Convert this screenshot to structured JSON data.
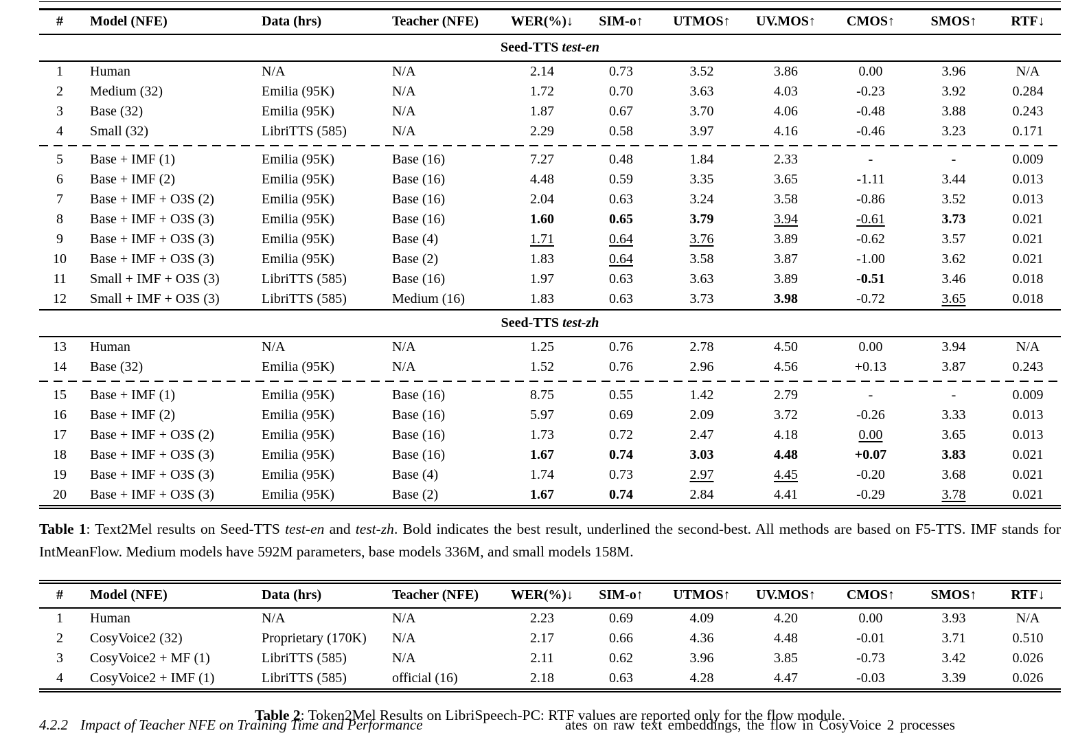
{
  "table1": {
    "headers": [
      "#",
      "Model (NFE)",
      "Data (hrs)",
      "Teacher (NFE)",
      "WER(%)↓",
      "SIM-o↑",
      "UTMOS↑",
      "UV.MOS↑",
      "CMOS↑",
      "SMOS↑",
      "RTF↓"
    ],
    "sections": [
      {
        "label_bold": "Seed-TTS",
        "label_italic": "test-en",
        "groups": [
          [
            [
              "1",
              "Human",
              "N/A",
              "N/A",
              "2.14",
              "0.73",
              "3.52",
              "3.86",
              "0.00",
              "3.96",
              "N/A"
            ],
            [
              "2",
              "Medium (32)",
              "Emilia (95K)",
              "N/A",
              "1.72",
              "0.70",
              "3.63",
              "4.03",
              "-0.23",
              "3.92",
              "0.284"
            ],
            [
              "3",
              "Base (32)",
              "Emilia (95K)",
              "N/A",
              "1.87",
              "0.67",
              "3.70",
              "4.06",
              "-0.48",
              "3.88",
              "0.243"
            ],
            [
              "4",
              "Small (32)",
              "LibriTTS (585)",
              "N/A",
              "2.29",
              "0.58",
              "3.97",
              "4.16",
              "-0.46",
              "3.23",
              "0.171"
            ]
          ],
          [
            [
              "5",
              "Base + IMF (1)",
              "Emilia (95K)",
              "Base (16)",
              "7.27",
              "0.48",
              "1.84",
              "2.33",
              "-",
              "-",
              "0.009"
            ],
            [
              "6",
              "Base + IMF (2)",
              "Emilia (95K)",
              "Base (16)",
              "4.48",
              "0.59",
              "3.35",
              "3.65",
              "-1.11",
              "3.44",
              "0.013"
            ],
            [
              "7",
              "Base + IMF + O3S (2)",
              "Emilia (95K)",
              "Base (16)",
              "2.04",
              "0.63",
              "3.24",
              "3.58",
              "-0.86",
              "3.52",
              "0.013"
            ],
            [
              "8",
              "Base + IMF + O3S (3)",
              "Emilia (95K)",
              "Base (16)",
              {
                "t": "1.60",
                "s": "b"
              },
              {
                "t": "0.65",
                "s": "b"
              },
              {
                "t": "3.79",
                "s": "b"
              },
              {
                "t": "3.94",
                "s": "u"
              },
              {
                "t": "-0.61",
                "s": "u"
              },
              {
                "t": "3.73",
                "s": "b"
              },
              "0.021"
            ],
            [
              "9",
              "Base + IMF + O3S (3)",
              "Emilia (95K)",
              "Base (4)",
              {
                "t": "1.71",
                "s": "u"
              },
              {
                "t": "0.64",
                "s": "u"
              },
              {
                "t": "3.76",
                "s": "u"
              },
              "3.89",
              "-0.62",
              "3.57",
              "0.021"
            ],
            [
              "10",
              "Base + IMF + O3S (3)",
              "Emilia (95K)",
              "Base (2)",
              "1.83",
              {
                "t": "0.64",
                "s": "u"
              },
              "3.58",
              "3.87",
              "-1.00",
              "3.62",
              "0.021"
            ],
            [
              "11",
              "Small + IMF + O3S (3)",
              "LibriTTS (585)",
              "Base (16)",
              "1.97",
              "0.63",
              "3.63",
              "3.89",
              {
                "t": "-0.51",
                "s": "b"
              },
              "3.46",
              "0.018"
            ],
            [
              "12",
              "Small + IMF + O3S (3)",
              "LibriTTS (585)",
              "Medium (16)",
              "1.83",
              "0.63",
              "3.73",
              {
                "t": "3.98",
                "s": "b"
              },
              "-0.72",
              {
                "t": "3.65",
                "s": "u"
              },
              "0.018"
            ]
          ]
        ]
      },
      {
        "label_bold": "Seed-TTS",
        "label_italic": "test-zh",
        "groups": [
          [
            [
              "13",
              "Human",
              "N/A",
              "N/A",
              "1.25",
              "0.76",
              "2.78",
              "4.50",
              "0.00",
              "3.94",
              "N/A"
            ],
            [
              "14",
              "Base (32)",
              "Emilia (95K)",
              "N/A",
              "1.52",
              "0.76",
              "2.96",
              "4.56",
              "+0.13",
              "3.87",
              "0.243"
            ]
          ],
          [
            [
              "15",
              "Base + IMF (1)",
              "Emilia (95K)",
              "Base (16)",
              "8.75",
              "0.55",
              "1.42",
              "2.79",
              "-",
              "-",
              "0.009"
            ],
            [
              "16",
              "Base + IMF (2)",
              "Emilia (95K)",
              "Base (16)",
              "5.97",
              "0.69",
              "2.09",
              "3.72",
              "-0.26",
              "3.33",
              "0.013"
            ],
            [
              "17",
              "Base + IMF + O3S (2)",
              "Emilia (95K)",
              "Base (16)",
              "1.73",
              "0.72",
              "2.47",
              "4.18",
              {
                "t": "0.00",
                "s": "u"
              },
              "3.65",
              "0.013"
            ],
            [
              "18",
              "Base + IMF + O3S (3)",
              "Emilia (95K)",
              "Base (16)",
              {
                "t": "1.67",
                "s": "b"
              },
              {
                "t": "0.74",
                "s": "b"
              },
              {
                "t": "3.03",
                "s": "b"
              },
              {
                "t": "4.48",
                "s": "b"
              },
              {
                "t": "+0.07",
                "s": "b"
              },
              {
                "t": "3.83",
                "s": "b"
              },
              "0.021"
            ],
            [
              "19",
              "Base + IMF + O3S (3)",
              "Emilia (95K)",
              "Base (4)",
              "1.74",
              "0.73",
              {
                "t": "2.97",
                "s": "u"
              },
              {
                "t": "4.45",
                "s": "u"
              },
              "-0.20",
              "3.68",
              "0.021"
            ],
            [
              "20",
              "Base + IMF + O3S (3)",
              "Emilia (95K)",
              "Base (2)",
              {
                "t": "1.67",
                "s": "b"
              },
              {
                "t": "0.74",
                "s": "b"
              },
              "2.84",
              "4.41",
              "-0.29",
              {
                "t": "3.78",
                "s": "u"
              },
              "0.021"
            ]
          ]
        ]
      }
    ],
    "caption_segments": [
      {
        "t": "Table 1",
        "b": true
      },
      {
        "t": ": Text2Mel results on Seed-TTS "
      },
      {
        "t": "test-en",
        "i": true
      },
      {
        "t": " and "
      },
      {
        "t": "test-zh",
        "i": true
      },
      {
        "t": ". Bold indicates the best result, underlined the second-best. All methods are based on F5-TTS. IMF stands for IntMeanFlow. Medium models have 592M parameters, base models 336M, and small models 158M."
      }
    ]
  },
  "table2": {
    "headers": [
      "#",
      "Model (NFE)",
      "Data (hrs)",
      "Teacher (NFE)",
      "WER(%)↓",
      "SIM-o↑",
      "UTMOS↑",
      "UV.MOS↑",
      "CMOS↑",
      "SMOS↑",
      "RTF↓"
    ],
    "rows": [
      [
        "1",
        "Human",
        "N/A",
        "N/A",
        "2.23",
        "0.69",
        "4.09",
        "4.20",
        "0.00",
        "3.93",
        "N/A"
      ],
      [
        "2",
        "CosyVoice2 (32)",
        "Proprietary (170K)",
        "N/A",
        "2.17",
        "0.66",
        "4.36",
        "4.48",
        "-0.01",
        "3.71",
        "0.510"
      ],
      [
        "3",
        "CosyVoice2 + MF (1)",
        "LibriTTS (585)",
        "N/A",
        "2.11",
        "0.62",
        "3.96",
        "3.85",
        "-0.73",
        "3.42",
        "0.026"
      ],
      [
        "4",
        "CosyVoice2 + IMF (1)",
        "LibriTTS (585)",
        "official (16)",
        "2.18",
        "0.63",
        "4.28",
        "4.47",
        "-0.03",
        "3.39",
        "0.026"
      ]
    ],
    "caption_segments": [
      {
        "t": "Table 2",
        "b": true
      },
      {
        "t": ": Token2Mel Results on LibriSpeech-PC: RTF values are reported only for the flow module."
      }
    ]
  },
  "page_bottom": {
    "left_number": "4.2.2",
    "left_title": "Impact of Teacher NFE on Training Time and Performance",
    "right_text": "ates on raw text embeddings, the flow in CosyVoice 2 processes"
  },
  "colors": {
    "text": "#000000",
    "background": "#ffffff"
  }
}
